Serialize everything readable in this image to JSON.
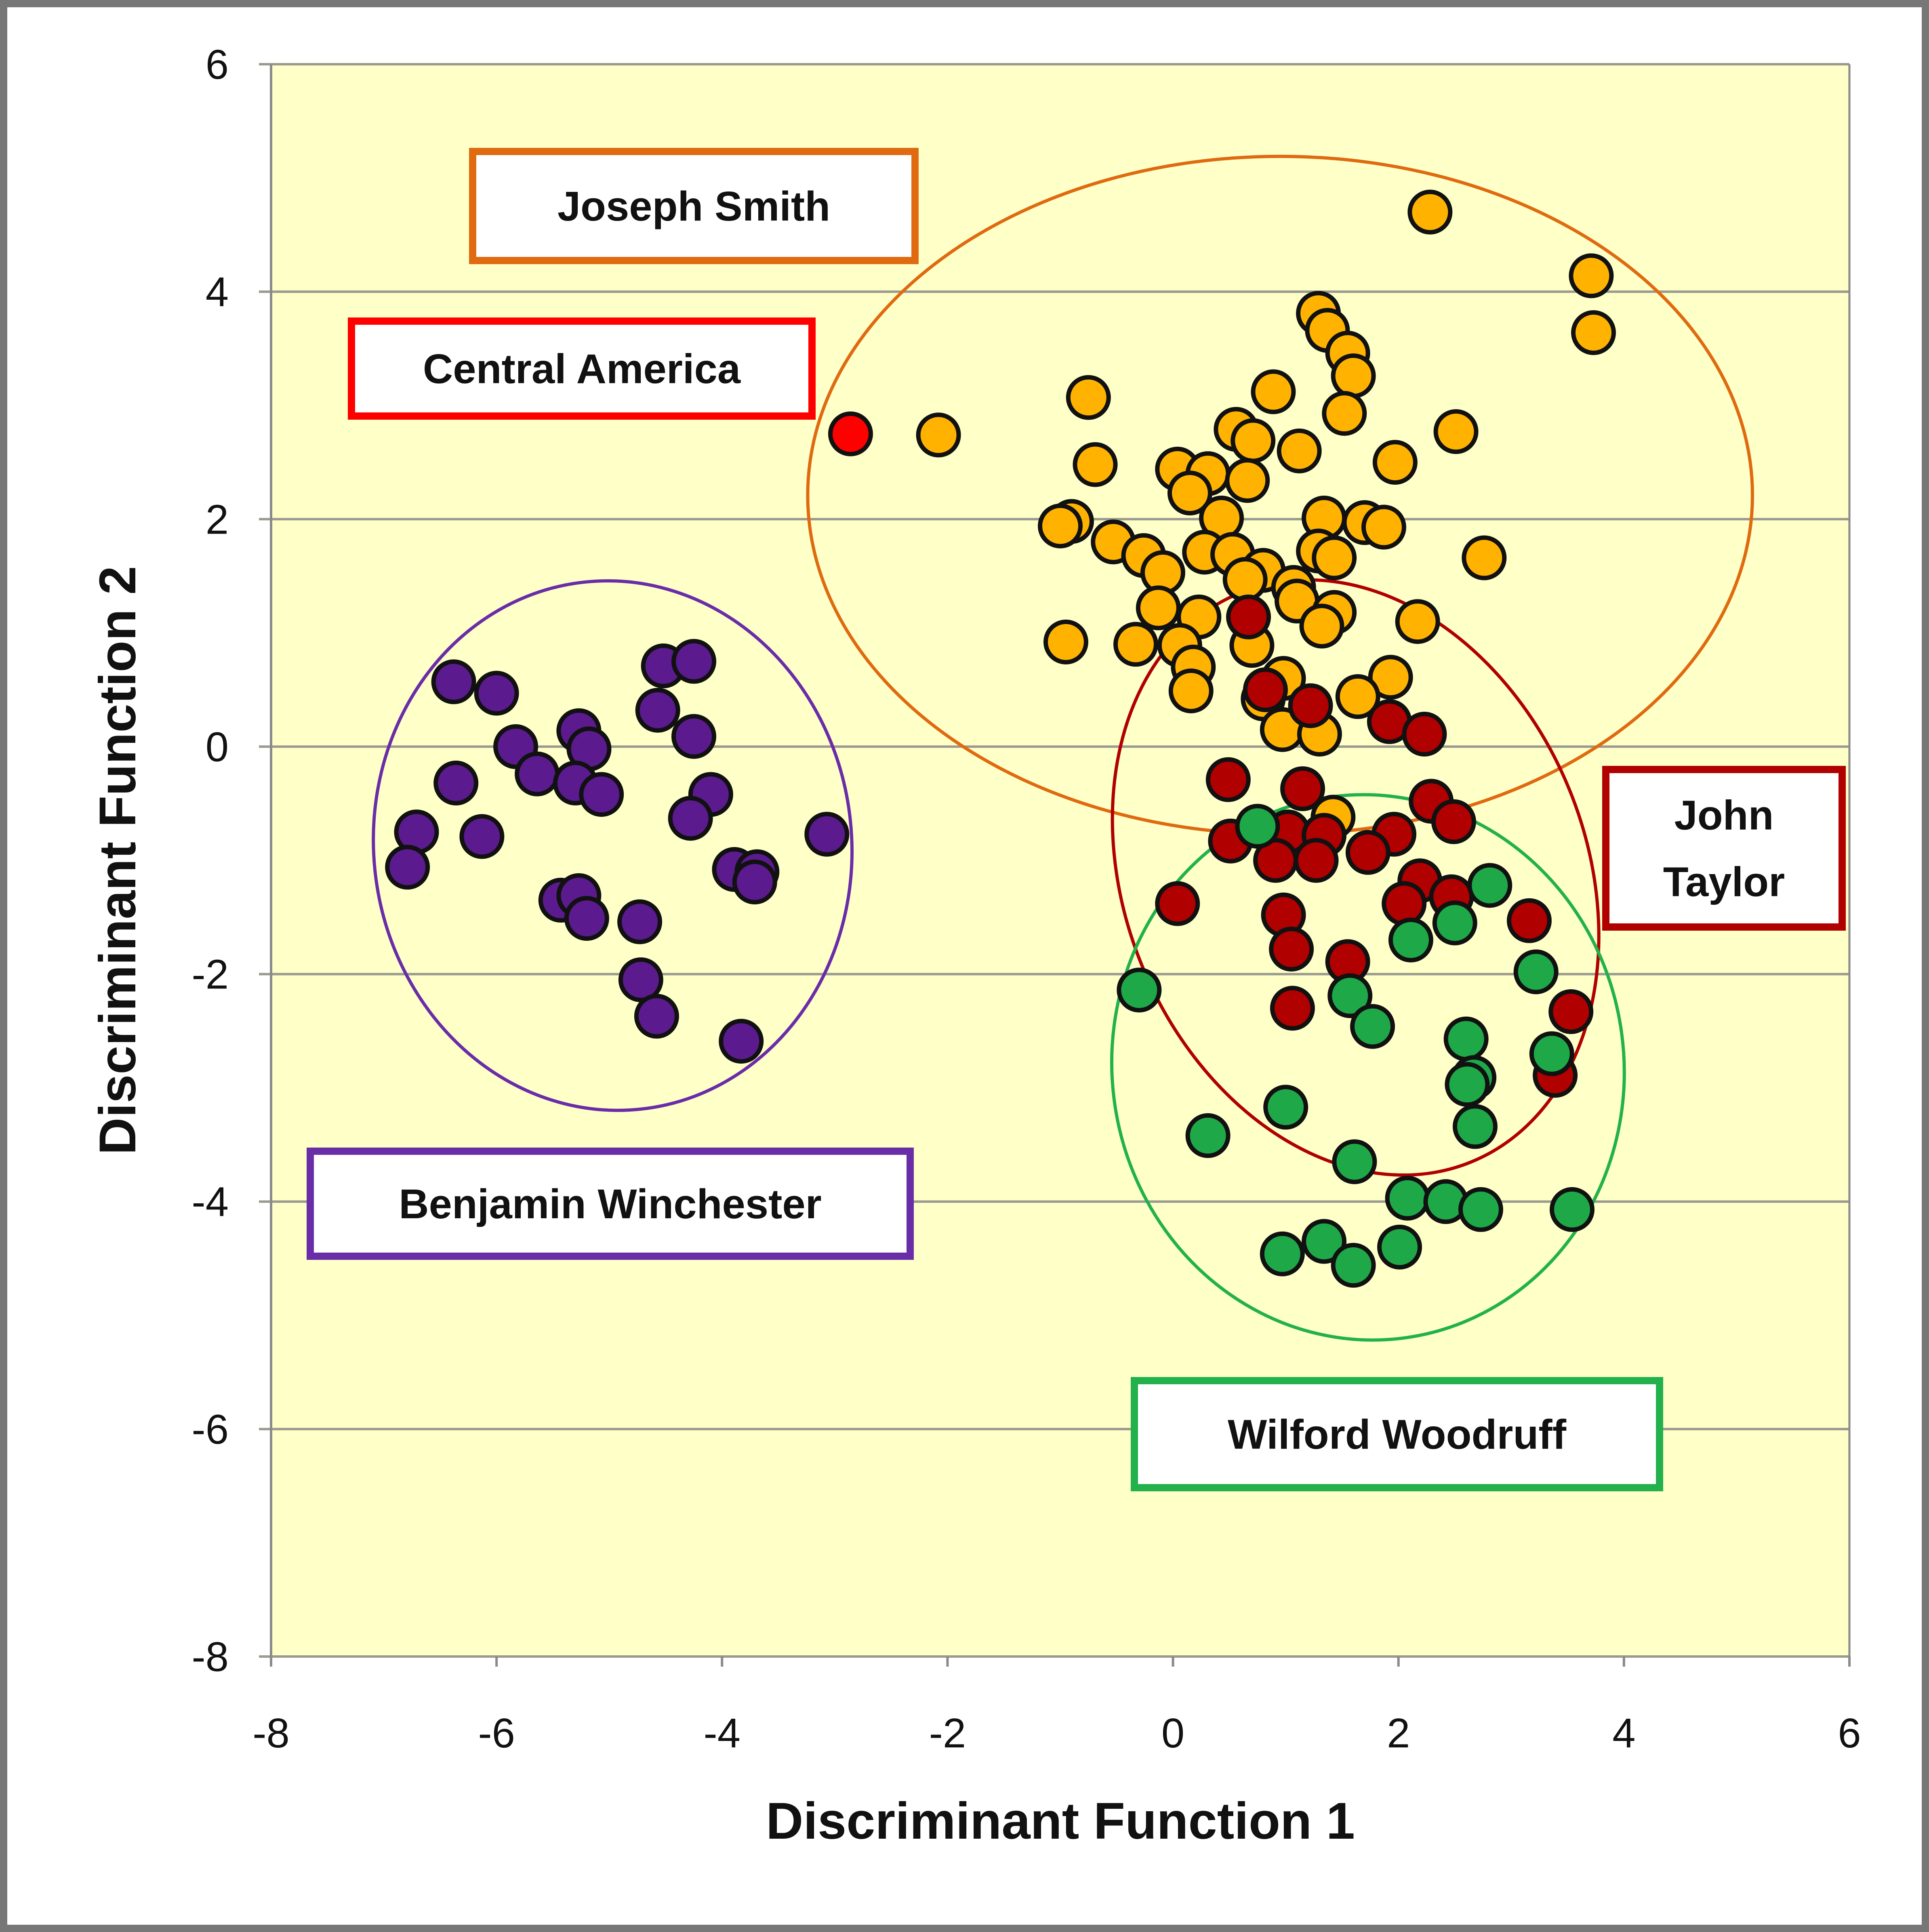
{
  "chart_data": {
    "type": "scatter",
    "title": "",
    "xlabel": "Discriminant Function 1",
    "ylabel": "Discriminant Function 2",
    "xlim": [
      -8,
      6
    ],
    "ylim": [
      -8,
      6
    ],
    "xticks": [
      "-8",
      "-6",
      "-4",
      "-2",
      "0",
      "2",
      "4",
      "6"
    ],
    "yticks": [
      "-8",
      "-6",
      "-4",
      "-2",
      "0",
      "2",
      "4",
      "6"
    ],
    "grid": "horizontal",
    "plot_background": "#FFFFC8",
    "series": [
      {
        "name": "Joseph Smith",
        "color": "#FFB300",
        "border": "#E06A10",
        "ellipse": {
          "cx": 0.95,
          "cy": 2.21,
          "rx": 4.19,
          "ry": 2.98,
          "angle": 0
        },
        "points": [
          [
            2.28,
            4.7
          ],
          [
            3.71,
            4.14
          ],
          [
            3.73,
            3.64
          ],
          [
            1.29,
            3.81
          ],
          [
            1.37,
            3.66
          ],
          [
            1.55,
            3.46
          ],
          [
            1.6,
            3.26
          ],
          [
            1.52,
            2.93
          ],
          [
            -0.75,
            3.07
          ],
          [
            0.89,
            3.12
          ],
          [
            -2.08,
            2.74
          ],
          [
            0.56,
            2.79
          ],
          [
            0.71,
            2.69
          ],
          [
            2.51,
            2.77
          ],
          [
            1.12,
            2.6
          ],
          [
            -0.69,
            2.48
          ],
          [
            0.04,
            2.44
          ],
          [
            0.31,
            2.4
          ],
          [
            0.66,
            2.34
          ],
          [
            1.97,
            2.5
          ],
          [
            0.15,
            2.23
          ],
          [
            0.43,
            2.01
          ],
          [
            1.34,
            2.01
          ],
          [
            -0.9,
            1.98
          ],
          [
            -1.0,
            1.94
          ],
          [
            1.7,
            1.97
          ],
          [
            1.87,
            1.93
          ],
          [
            -0.53,
            1.8
          ],
          [
            -0.26,
            1.68
          ],
          [
            0.28,
            1.71
          ],
          [
            0.53,
            1.69
          ],
          [
            1.29,
            1.72
          ],
          [
            1.43,
            1.66
          ],
          [
            2.76,
            1.66
          ],
          [
            -0.09,
            1.53
          ],
          [
            0.8,
            1.55
          ],
          [
            0.64,
            1.47
          ],
          [
            1.07,
            1.4
          ],
          [
            -0.13,
            1.22
          ],
          [
            1.1,
            1.28
          ],
          [
            0.23,
            1.14
          ],
          [
            1.43,
            1.18
          ],
          [
            2.17,
            1.1
          ],
          [
            -0.95,
            0.92
          ],
          [
            -0.33,
            0.9
          ],
          [
            1.32,
            1.06
          ],
          [
            0.06,
            0.89
          ],
          [
            0.7,
            0.89
          ],
          [
            0.18,
            0.7
          ],
          [
            0.98,
            0.6
          ],
          [
            1.93,
            0.61
          ],
          [
            0.16,
            0.49
          ],
          [
            0.8,
            0.42
          ],
          [
            1.64,
            0.44
          ],
          [
            0.97,
            0.15
          ],
          [
            1.3,
            0.11
          ],
          [
            1.42,
            -0.62
          ]
        ]
      },
      {
        "name": "Central America",
        "color": "#FF0000",
        "border": "#FF0000",
        "points": [
          [
            -2.86,
            2.75
          ]
        ]
      },
      {
        "name": "John Taylor",
        "color": "#B00000",
        "border": "#B00000",
        "ellipse": {
          "cx": 1.62,
          "cy": -1.15,
          "rx": 2.05,
          "ry": 2.7,
          "angle": -22
        },
        "points": [
          [
            0.67,
            1.14
          ],
          [
            0.82,
            0.5
          ],
          [
            1.22,
            0.36
          ],
          [
            1.92,
            0.22
          ],
          [
            2.23,
            0.11
          ],
          [
            0.49,
            -0.29
          ],
          [
            1.15,
            -0.37
          ],
          [
            2.29,
            -0.48
          ],
          [
            2.49,
            -0.66
          ],
          [
            0.51,
            -0.83
          ],
          [
            1.02,
            -0.75
          ],
          [
            1.34,
            -0.78
          ],
          [
            1.96,
            -0.77
          ],
          [
            1.73,
            -0.93
          ],
          [
            0.91,
            -1.0
          ],
          [
            1.27,
            -1.0
          ],
          [
            2.19,
            -1.18
          ],
          [
            2.05,
            -1.38
          ],
          [
            2.47,
            -1.32
          ],
          [
            0.04,
            -1.38
          ],
          [
            0.98,
            -1.48
          ],
          [
            1.05,
            -1.78
          ],
          [
            1.55,
            -1.89
          ],
          [
            3.16,
            -1.53
          ],
          [
            1.06,
            -2.3
          ],
          [
            3.53,
            -2.33
          ],
          [
            3.39,
            -2.89
          ]
        ]
      },
      {
        "name": "Wilford Woodruff",
        "color": "#1EA848",
        "border": "#22B14C",
        "ellipse": {
          "cx": 1.73,
          "cy": -2.82,
          "rx": 2.27,
          "ry": 2.4,
          "angle": -8
        },
        "points": [
          [
            0.75,
            -0.7
          ],
          [
            2.81,
            -1.22
          ],
          [
            2.5,
            -1.55
          ],
          [
            2.11,
            -1.7
          ],
          [
            -0.3,
            -2.14
          ],
          [
            1.57,
            -2.19
          ],
          [
            1.77,
            -2.46
          ],
          [
            3.22,
            -1.98
          ],
          [
            2.6,
            -2.57
          ],
          [
            2.67,
            -2.91
          ],
          [
            2.61,
            -2.97
          ],
          [
            3.36,
            -2.7
          ],
          [
            1.0,
            -3.17
          ],
          [
            2.68,
            -3.34
          ],
          [
            0.31,
            -3.42
          ],
          [
            1.61,
            -3.65
          ],
          [
            2.08,
            -3.97
          ],
          [
            2.42,
            -4.0
          ],
          [
            2.73,
            -4.07
          ],
          [
            3.54,
            -4.07
          ],
          [
            0.97,
            -4.46
          ],
          [
            1.34,
            -4.35
          ],
          [
            1.6,
            -4.56
          ],
          [
            2.01,
            -4.4
          ]
        ]
      },
      {
        "name": "Benjamin Winchester",
        "color": "#5B1A8E",
        "border": "#6A2DA8",
        "ellipse": {
          "cx": -4.97,
          "cy": -0.87,
          "rx": 2.12,
          "ry": 2.33,
          "angle": -6
        },
        "points": [
          [
            -6.38,
            0.57
          ],
          [
            -6.0,
            0.47
          ],
          [
            -5.83,
            0.0
          ],
          [
            -5.64,
            -0.24
          ],
          [
            -5.27,
            0.14
          ],
          [
            -5.18,
            -0.02
          ],
          [
            -5.3,
            -0.32
          ],
          [
            -5.07,
            -0.42
          ],
          [
            -6.36,
            -0.32
          ],
          [
            -6.71,
            -0.75
          ],
          [
            -6.79,
            -1.06
          ],
          [
            -6.13,
            -0.79
          ],
          [
            -4.52,
            0.71
          ],
          [
            -4.25,
            0.75
          ],
          [
            -4.57,
            0.32
          ],
          [
            -4.25,
            0.09
          ],
          [
            -4.1,
            -0.42
          ],
          [
            -4.28,
            -0.63
          ],
          [
            -3.07,
            -0.77
          ],
          [
            -3.89,
            -1.08
          ],
          [
            -3.69,
            -1.1
          ],
          [
            -3.71,
            -1.19
          ],
          [
            -5.43,
            -1.35
          ],
          [
            -5.27,
            -1.31
          ],
          [
            -5.2,
            -1.51
          ],
          [
            -4.73,
            -1.54
          ],
          [
            -4.72,
            -2.05
          ],
          [
            -4.58,
            -2.37
          ],
          [
            -3.83,
            -2.59
          ]
        ]
      }
    ],
    "annotations": [
      {
        "text": "Joseph Smith",
        "lines": [
          "Joseph Smith"
        ],
        "border": "#E06A10",
        "anchor": [
          -4.7,
          4.7
        ]
      },
      {
        "text": "Central America",
        "lines": [
          "Central America"
        ],
        "border": "#FF0000",
        "anchor": [
          -5.8,
          3.3
        ]
      },
      {
        "text": "John Taylor",
        "lines": [
          "John",
          "Taylor"
        ],
        "border": "#B00000",
        "anchor": [
          5.0,
          -0.9
        ]
      },
      {
        "text": "Benjamin Winchester",
        "lines": [
          "Benjamin Winchester"
        ],
        "border": "#6A2DA8",
        "anchor": [
          -5.3,
          -4.0
        ]
      },
      {
        "text": "Wilford Woodruff",
        "lines": [
          "Wilford Woodruff"
        ],
        "border": "#22B14C",
        "anchor": [
          2.0,
          -6.0
        ]
      }
    ]
  }
}
